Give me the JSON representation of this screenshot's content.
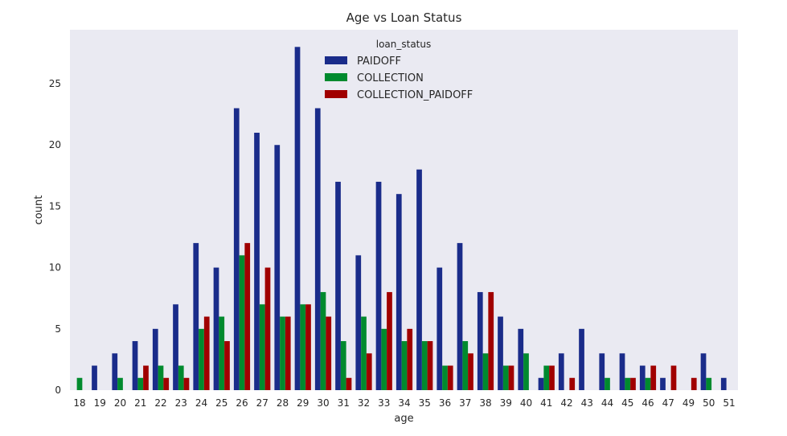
{
  "chart_data": {
    "type": "bar",
    "title": "Age vs Loan Status",
    "xlabel": "age",
    "ylabel": "count",
    "ylim": [
      0,
      29.4
    ],
    "yticks": [
      0,
      5,
      10,
      15,
      20,
      25
    ],
    "grid": false,
    "legend": {
      "title": "loan_status",
      "placement": "top-center"
    },
    "categories": [
      "18",
      "19",
      "20",
      "21",
      "22",
      "23",
      "24",
      "25",
      "26",
      "27",
      "28",
      "29",
      "30",
      "31",
      "32",
      "33",
      "34",
      "35",
      "36",
      "37",
      "38",
      "39",
      "40",
      "41",
      "42",
      "43",
      "44",
      "45",
      "46",
      "47",
      "49",
      "50",
      "51"
    ],
    "series": [
      {
        "name": "PAIDOFF",
        "color": "#1a2c8a",
        "values": [
          0,
          2,
          3,
          4,
          5,
          7,
          12,
          10,
          23,
          21,
          20,
          28,
          23,
          17,
          11,
          17,
          16,
          18,
          10,
          12,
          8,
          6,
          5,
          1,
          3,
          5,
          3,
          3,
          2,
          1,
          0,
          3,
          1
        ]
      },
      {
        "name": "COLLECTION",
        "color": "#008a2e",
        "values": [
          1,
          0,
          1,
          1,
          2,
          2,
          5,
          6,
          11,
          7,
          6,
          7,
          8,
          4,
          6,
          5,
          4,
          4,
          2,
          4,
          3,
          2,
          3,
          2,
          0,
          0,
          1,
          1,
          1,
          0,
          0,
          1,
          0
        ]
      },
      {
        "name": "COLLECTION_PAIDOFF",
        "color": "#a00000",
        "values": [
          0,
          0,
          0,
          2,
          1,
          1,
          6,
          4,
          12,
          10,
          6,
          7,
          6,
          1,
          3,
          8,
          5,
          4,
          2,
          3,
          8,
          2,
          0,
          2,
          1,
          0,
          0,
          1,
          2,
          2,
          1,
          0,
          0
        ]
      }
    ]
  }
}
